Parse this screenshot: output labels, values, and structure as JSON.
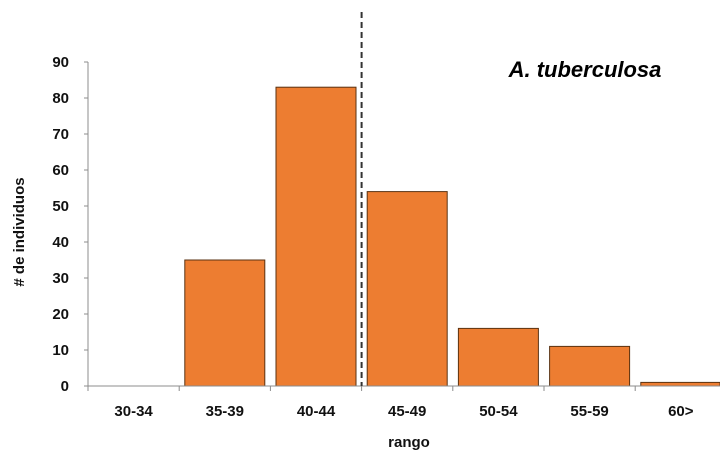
{
  "chart_data": {
    "type": "bar",
    "title": "A. tuberculosa",
    "xlabel": "rango",
    "ylabel": "# de individuos",
    "categories": [
      "30-34",
      "35-39",
      "40-44",
      "45-49",
      "50-54",
      "55-59",
      "60>"
    ],
    "values": [
      0,
      35,
      83,
      54,
      16,
      11,
      1
    ],
    "ylim": [
      0,
      90
    ],
    "yticks": [
      "0",
      "10",
      "20",
      "30",
      "40",
      "50",
      "60",
      "70",
      "80",
      "90"
    ],
    "grid": false,
    "legend": "none",
    "reference_line": {
      "style": "dashed",
      "position_between": [
        "40-44",
        "45-49"
      ]
    },
    "colors": {
      "bar_fill": "#ED7D31",
      "bar_stroke": "#5A3212",
      "axis": "#8C8C8C",
      "text": "#111111",
      "reference_line": "#333333"
    }
  }
}
